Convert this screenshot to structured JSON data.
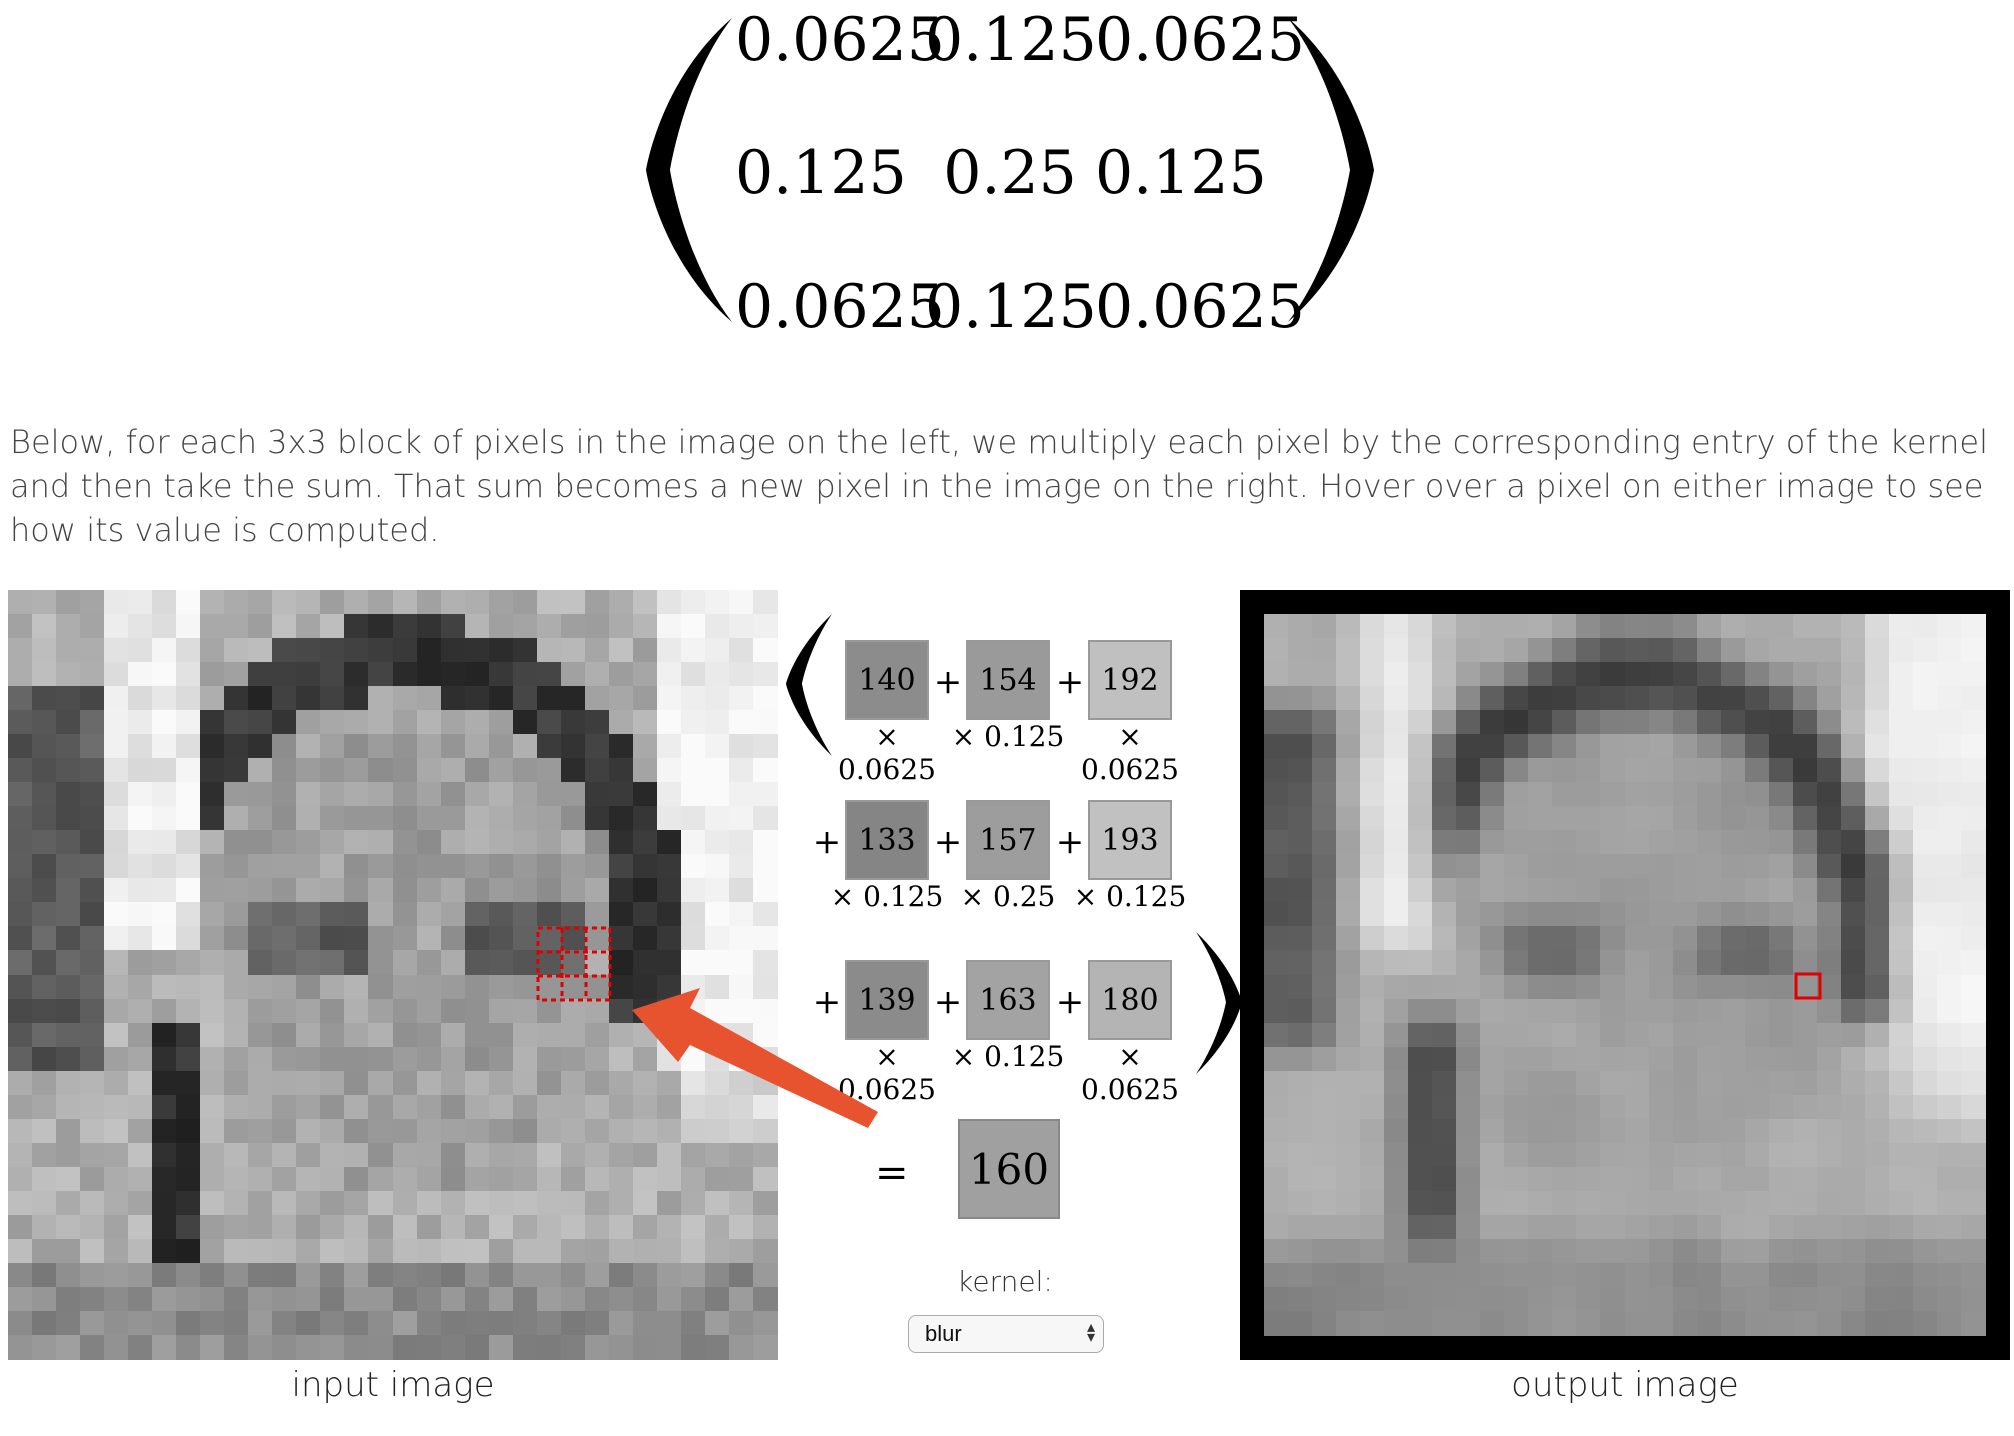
{
  "kernel_matrix": {
    "rows": [
      [
        "0.0625",
        "0.125",
        "0.0625"
      ],
      [
        "0.125",
        "0.25",
        "0.125"
      ],
      [
        "0.0625",
        "0.125",
        "0.0625"
      ]
    ]
  },
  "description": "Below, for each 3x3 block of pixels in the image on the left, we multiply each pixel by the corresponding entry of the kernel and then take the sum. That sum becomes a new pixel in the image on the right. Hover over a pixel on either image to see how its value is computed.",
  "input_caption": "input image",
  "output_caption": "output image",
  "computation": {
    "pixels": [
      [
        "140",
        "154",
        "192"
      ],
      [
        "133",
        "157",
        "193"
      ],
      [
        "139",
        "163",
        "180"
      ]
    ],
    "multipliers": [
      [
        "× 0.0625",
        "× 0.125",
        "× 0.0625"
      ],
      [
        "× 0.125",
        "× 0.25",
        "× 0.125"
      ],
      [
        "× 0.0625",
        "× 0.125",
        "× 0.0625"
      ]
    ],
    "plus": "+",
    "equals": "=",
    "result": "160"
  },
  "kernel_selector": {
    "label": "kernel:",
    "selected": "blur"
  },
  "colors": {
    "highlight": "#e00000",
    "arrow": "#e8532f",
    "box_border": "#999999"
  }
}
